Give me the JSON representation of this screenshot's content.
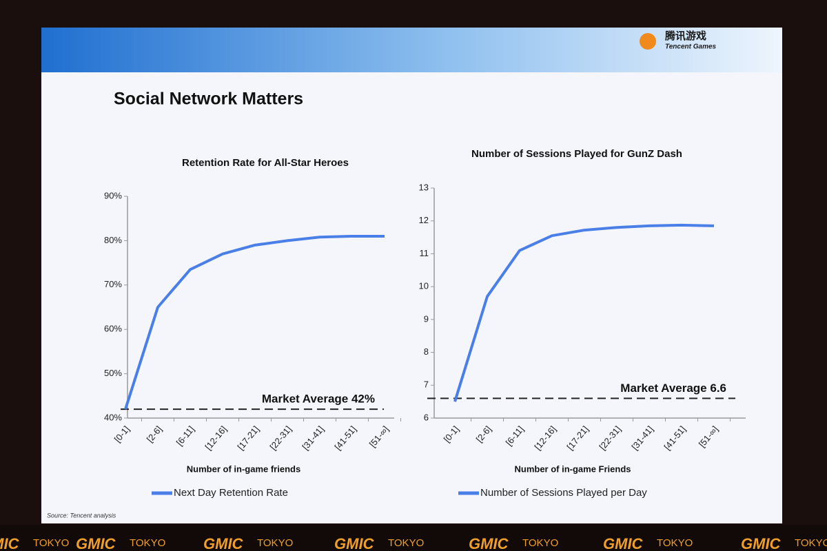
{
  "slide": {
    "title": "Social Network Matters",
    "source": "Source: Tencent analysis",
    "logo_cn": "腾讯游戏",
    "logo_en": "Tencent Games"
  },
  "banner": {
    "brand": "GMIC",
    "city": "TOKYO"
  },
  "chart_data": [
    {
      "type": "line",
      "title": "Retention Rate for All-Star Heroes",
      "x_label": "Number of in-game friends",
      "categories": [
        "[0-1]",
        "[2-6]",
        "[6-11]",
        "[12-16]",
        "[17-21]",
        "[22-31]",
        "[31-41]",
        "[41-51]",
        "[51-∞]"
      ],
      "series": [
        {
          "name": "Next Day Retention Rate",
          "color": "#4a7fe8",
          "values": [
            42,
            65,
            73.5,
            77,
            79,
            80,
            80.8,
            81,
            81
          ]
        }
      ],
      "ylim": [
        40,
        90
      ],
      "yticks": [
        {
          "value": 40,
          "label": "40%"
        },
        {
          "value": 50,
          "label": "50%"
        },
        {
          "value": 60,
          "label": "60%"
        },
        {
          "value": 70,
          "label": "70%"
        },
        {
          "value": 80,
          "label": "80%"
        },
        {
          "value": 90,
          "label": "90%"
        }
      ],
      "reference_line": {
        "value": 42,
        "label": "Market Average 42%"
      }
    },
    {
      "type": "line",
      "title": "Number of Sessions Played for GunZ Dash",
      "x_label": "Number of in-game Friends",
      "categories": [
        "[0-1]",
        "[2-6]",
        "[6-11]",
        "[12-16]",
        "[17-21]",
        "[22-31]",
        "[31-41]",
        "[41-51]",
        "[51-∞]"
      ],
      "series": [
        {
          "name": "Number of Sessions Played per Day",
          "color": "#4a7fe8",
          "values": [
            6.5,
            9.7,
            11.1,
            11.55,
            11.72,
            11.8,
            11.85,
            11.87,
            11.85
          ]
        }
      ],
      "ylim": [
        6,
        13
      ],
      "yticks": [
        6,
        7,
        8,
        9,
        10,
        11,
        12,
        13
      ],
      "reference_line": {
        "value": 6.6,
        "label": "Market Average 6.6"
      }
    }
  ]
}
